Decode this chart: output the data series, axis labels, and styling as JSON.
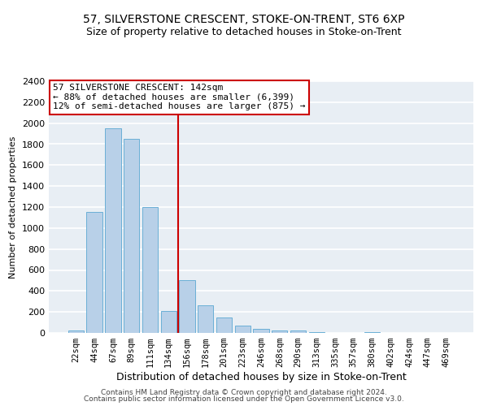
{
  "title_line1": "57, SILVERSTONE CRESCENT, STOKE-ON-TRENT, ST6 6XP",
  "title_line2": "Size of property relative to detached houses in Stoke-on-Trent",
  "xlabel": "Distribution of detached houses by size in Stoke-on-Trent",
  "ylabel": "Number of detached properties",
  "categories": [
    "22sqm",
    "44sqm",
    "67sqm",
    "89sqm",
    "111sqm",
    "134sqm",
    "156sqm",
    "178sqm",
    "201sqm",
    "223sqm",
    "246sqm",
    "268sqm",
    "290sqm",
    "313sqm",
    "335sqm",
    "357sqm",
    "380sqm",
    "402sqm",
    "424sqm",
    "447sqm",
    "469sqm"
  ],
  "values": [
    20,
    1150,
    1950,
    1850,
    1200,
    210,
    500,
    265,
    150,
    70,
    35,
    25,
    20,
    5,
    3,
    2,
    10,
    2,
    1,
    1,
    1
  ],
  "bar_color": "#b8d0e8",
  "bar_edge_color": "#6aafd6",
  "vline_x_index": 5.5,
  "vline_color": "#cc0000",
  "annotation_text": "57 SILVERSTONE CRESCENT: 142sqm\n← 88% of detached houses are smaller (6,399)\n12% of semi-detached houses are larger (875) →",
  "annotation_box_color": "white",
  "annotation_box_edge_color": "#cc0000",
  "ylim_max": 2400,
  "yticks": [
    0,
    200,
    400,
    600,
    800,
    1000,
    1200,
    1400,
    1600,
    1800,
    2000,
    2200,
    2400
  ],
  "background_color": "#e8eef4",
  "grid_color": "white",
  "footer_line1": "Contains HM Land Registry data © Crown copyright and database right 2024.",
  "footer_line2": "Contains public sector information licensed under the Open Government Licence v3.0.",
  "title1_fontsize": 10,
  "title2_fontsize": 9,
  "xlabel_fontsize": 9,
  "ylabel_fontsize": 8,
  "annotation_fontsize": 8,
  "tick_fontsize": 8,
  "footer_fontsize": 6.5
}
